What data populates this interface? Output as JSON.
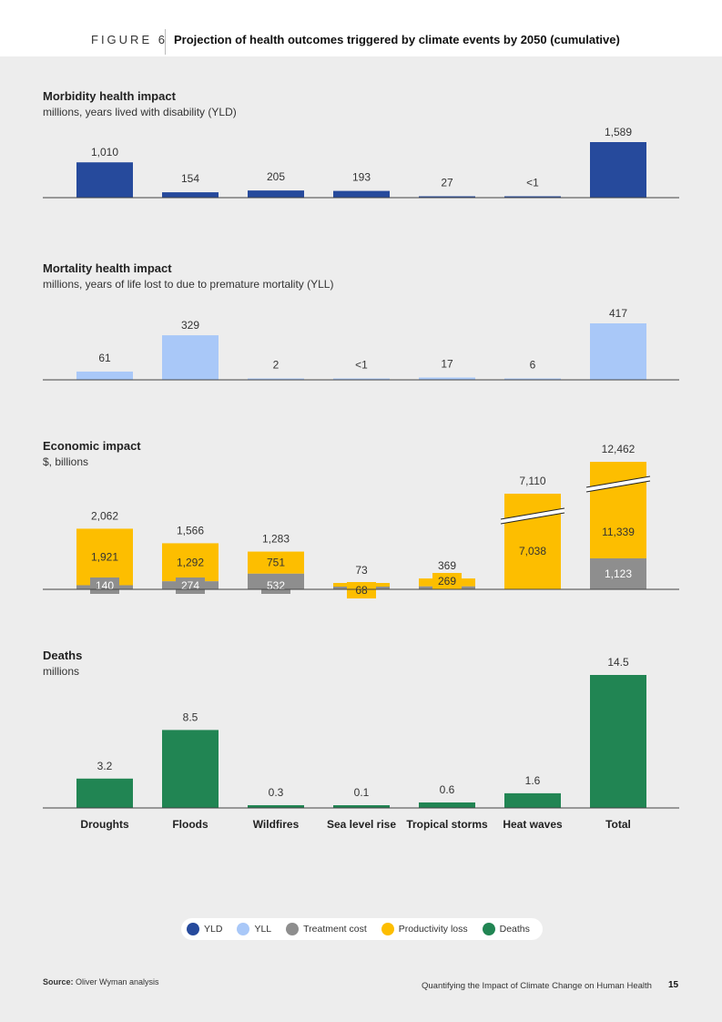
{
  "header": {
    "figure_label": "FIGURE 6",
    "title": "Projection of health outcomes triggered by climate events by 2050 (cumulative)"
  },
  "colors": {
    "yld": "#264a9c",
    "yll": "#a9c8f8",
    "treatment": "#8e8e8e",
    "productivity": "#fdbe00",
    "deaths": "#218553",
    "panel_bg": "#ededed"
  },
  "chart_data": [
    {
      "id": "morbidity",
      "type": "bar",
      "title": "Morbidity health impact",
      "subtitle": "millions, years lived with disability (YLD)",
      "categories": [
        "Droughts",
        "Floods",
        "Wildfires",
        "Sea level rise",
        "Tropical storms",
        "Heat waves",
        "Total"
      ],
      "series": [
        {
          "name": "YLD",
          "values": [
            1010,
            154,
            205,
            193,
            27,
            0.5,
            1589
          ]
        }
      ],
      "data_labels": [
        "1,010",
        "154",
        "205",
        "193",
        "27",
        "<1",
        "1,589"
      ],
      "ylim": [
        0,
        1589
      ]
    },
    {
      "id": "mortality",
      "type": "bar",
      "title": "Mortality health impact",
      "subtitle": "millions, years of life lost to due to premature mortality (YLL)",
      "categories": [
        "Droughts",
        "Floods",
        "Wildfires",
        "Sea level rise",
        "Tropical storms",
        "Heat waves",
        "Total"
      ],
      "series": [
        {
          "name": "YLL",
          "values": [
            61,
            329,
            2,
            0.5,
            17,
            6,
            417
          ]
        }
      ],
      "data_labels": [
        "61",
        "329",
        "2",
        "<1",
        "17",
        "6",
        "417"
      ],
      "ylim": [
        0,
        417
      ]
    },
    {
      "id": "economic",
      "type": "bar",
      "stacked": true,
      "title": "Economic impact",
      "subtitle": "$, billions",
      "categories": [
        "Droughts",
        "Floods",
        "Wildfires",
        "Sea level rise",
        "Tropical storms",
        "Heat waves",
        "Total"
      ],
      "series": [
        {
          "name": "Treatment cost",
          "values": [
            140,
            274,
            532,
            5,
            100,
            72,
            1123
          ],
          "labels": [
            "140",
            "274",
            "532",
            "",
            "",
            "",
            "1,123"
          ]
        },
        {
          "name": "Productivity loss",
          "values": [
            1921,
            1292,
            751,
            68,
            269,
            7038,
            11339
          ],
          "labels": [
            "1,921",
            "1,292",
            "751",
            "68",
            "269",
            "7,038",
            "11,339"
          ]
        }
      ],
      "totals": [
        "2,062",
        "1,566",
        "1,283",
        "73",
        "369",
        "7,110",
        "12,462"
      ],
      "axis_break": [
        false,
        false,
        false,
        false,
        false,
        true,
        true
      ]
    },
    {
      "id": "deaths",
      "type": "bar",
      "title": "Deaths",
      "subtitle": "millions",
      "categories": [
        "Droughts",
        "Floods",
        "Wildfires",
        "Sea level rise",
        "Tropical storms",
        "Heat waves",
        "Total"
      ],
      "series": [
        {
          "name": "Deaths",
          "values": [
            3.2,
            8.5,
            0.3,
            0.1,
            0.6,
            1.6,
            14.5
          ]
        }
      ],
      "data_labels": [
        "3.2",
        "8.5",
        "0.3",
        "0.1",
        "0.6",
        "1.6",
        "14.5"
      ],
      "ylim": [
        0,
        14.5
      ]
    }
  ],
  "legend": [
    {
      "label": "YLD",
      "color": "#264a9c"
    },
    {
      "label": "YLL",
      "color": "#a9c8f8"
    },
    {
      "label": "Treatment cost",
      "color": "#8e8e8e"
    },
    {
      "label": "Productivity loss",
      "color": "#fdbe00"
    },
    {
      "label": "Deaths",
      "color": "#218553"
    }
  ],
  "source": {
    "label": "Source:",
    "text": "Oliver Wyman analysis"
  },
  "footer": {
    "text": "Quantifying the Impact of Climate Change on Human Health",
    "page": "15"
  }
}
